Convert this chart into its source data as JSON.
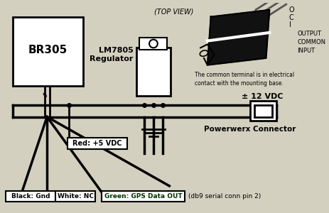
{
  "bg_color": "#d4d0c0",
  "br305_label": "BR305",
  "lm7805_label": "LM7805\nRegulator",
  "top_view_label": "(TOP VIEW)",
  "output_label": "OUTPUT\nCOMMON\nINPUT",
  "common_note": "The common terminal is in electrical\ncontact with the mounting base.",
  "plus_minus_label": "± 12 VDC",
  "powerwerx_label": "Powerwerx Connector",
  "red_label": "Red: +5 VDC",
  "black_label": "Black: Gnd",
  "white_label": "White: NC",
  "green_label": "Green: GPS Data OUT",
  "db9_label": "(db9 serial conn pin 2)"
}
